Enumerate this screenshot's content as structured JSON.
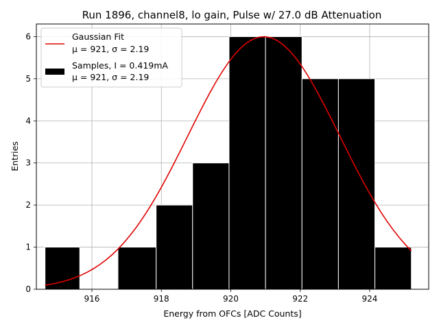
{
  "chart_data": {
    "type": "bar",
    "title": "Run 1896, channel8, lo gain, Pulse w/ 27.0 dB Attenuation",
    "xlabel": "Energy from OFCs [ADC Counts]",
    "ylabel": "Entries",
    "xlim": [
      914.4,
      925.7
    ],
    "ylim": [
      0,
      6.3
    ],
    "x_ticks": [
      916,
      918,
      920,
      922,
      924
    ],
    "y_ticks": [
      0,
      1,
      2,
      3,
      4,
      5,
      6
    ],
    "grid": true,
    "legend_position": "top-left",
    "histogram": {
      "name": "Samples, I = 0.419mA",
      "stats": "μ = 921, σ = 2.19",
      "color": "#000000",
      "edge_color": "#ffffff",
      "bins": [
        {
          "x0": 914.65,
          "x1": 915.65,
          "count": 1
        },
        {
          "x0": 915.65,
          "x1": 916.75,
          "count": 0
        },
        {
          "x0": 916.75,
          "x1": 917.85,
          "count": 1
        },
        {
          "x0": 917.85,
          "x1": 918.9,
          "count": 2
        },
        {
          "x0": 918.9,
          "x1": 919.95,
          "count": 3
        },
        {
          "x0": 919.95,
          "x1": 921.0,
          "count": 6
        },
        {
          "x0": 921.0,
          "x1": 922.05,
          "count": 6
        },
        {
          "x0": 922.05,
          "x1": 923.1,
          "count": 5
        },
        {
          "x0": 923.1,
          "x1": 924.15,
          "count": 5
        },
        {
          "x0": 924.15,
          "x1": 925.2,
          "count": 1
        }
      ]
    },
    "fit": {
      "name": "Gaussian Fit",
      "stats": "μ = 921, σ = 2.19",
      "color": "#e00000",
      "mean": 920.95,
      "sigma": 2.19,
      "amplitude": 6.0,
      "x_range": [
        914.65,
        925.2
      ]
    }
  }
}
